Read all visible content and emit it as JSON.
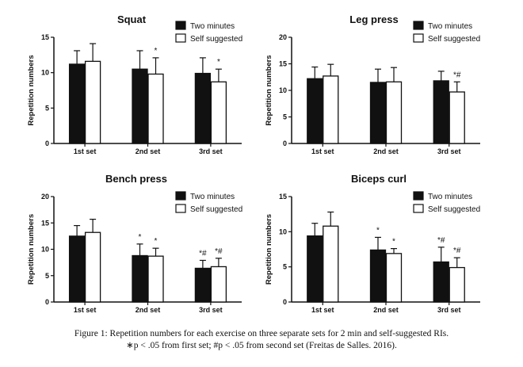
{
  "colors": {
    "two_minutes": "#111111",
    "self_suggested": "#ffffff",
    "outline": "#111111"
  },
  "chart_data": [
    {
      "type": "bar",
      "title": "Squat",
      "ylabel": "Repetition numbers",
      "xlabel": "",
      "categories": [
        "1st set",
        "2nd set",
        "3rd set"
      ],
      "ylim": [
        0,
        15
      ],
      "yticks": [
        0,
        5,
        10,
        15
      ],
      "legend": "top-right",
      "series": [
        {
          "name": "Two minutes",
          "values": [
            11.2,
            10.5,
            9.9
          ],
          "errors": [
            1.9,
            2.6,
            2.2
          ],
          "annotations": [
            "",
            "",
            ""
          ]
        },
        {
          "name": "Self suggested",
          "values": [
            11.6,
            9.8,
            8.7
          ],
          "errors": [
            2.5,
            2.3,
            1.8
          ],
          "annotations": [
            "",
            "*",
            "*"
          ]
        }
      ]
    },
    {
      "type": "bar",
      "title": "Leg press",
      "ylabel": "Repetition numbers",
      "xlabel": "",
      "categories": [
        "1st set",
        "2nd set",
        "3rd set"
      ],
      "ylim": [
        0,
        20
      ],
      "yticks": [
        0,
        5,
        10,
        15,
        20
      ],
      "legend": "top-right",
      "series": [
        {
          "name": "Two minutes",
          "values": [
            12.2,
            11.5,
            11.8
          ],
          "errors": [
            2.2,
            2.5,
            1.8
          ],
          "annotations": [
            "",
            "",
            ""
          ]
        },
        {
          "name": "Self suggested",
          "values": [
            12.7,
            11.6,
            9.7
          ],
          "errors": [
            2.2,
            2.7,
            1.9
          ],
          "annotations": [
            "",
            "",
            "*#"
          ]
        }
      ]
    },
    {
      "type": "bar",
      "title": "Bench press",
      "ylabel": "Repetition numbers",
      "xlabel": "",
      "categories": [
        "1st set",
        "2nd set",
        "3rd set"
      ],
      "ylim": [
        0,
        20
      ],
      "yticks": [
        0,
        5,
        10,
        15,
        20
      ],
      "legend": "top-right",
      "series": [
        {
          "name": "Two minutes",
          "values": [
            12.5,
            8.8,
            6.4
          ],
          "errors": [
            2.0,
            2.2,
            1.5
          ],
          "annotations": [
            "",
            "*",
            "*#"
          ]
        },
        {
          "name": "Self suggested",
          "values": [
            13.2,
            8.7,
            6.7
          ],
          "errors": [
            2.5,
            1.5,
            1.6
          ],
          "annotations": [
            "",
            "*",
            "*#"
          ]
        }
      ]
    },
    {
      "type": "bar",
      "title": "Biceps curl",
      "ylabel": "Repetition numbers",
      "xlabel": "",
      "categories": [
        "1st set",
        "2nd set",
        "3rd set"
      ],
      "ylim": [
        0,
        15
      ],
      "yticks": [
        0,
        5,
        10,
        15
      ],
      "legend": "top-right",
      "series": [
        {
          "name": "Two minutes",
          "values": [
            9.4,
            7.4,
            5.7
          ],
          "errors": [
            1.8,
            1.8,
            2.1
          ],
          "annotations": [
            "",
            "*",
            "*#"
          ]
        },
        {
          "name": "Self suggested",
          "values": [
            10.8,
            6.9,
            4.9
          ],
          "errors": [
            2.0,
            0.7,
            1.4
          ],
          "annotations": [
            "",
            "*",
            "*#"
          ]
        }
      ]
    }
  ],
  "caption": {
    "line1": "Figure 1: Repetition numbers for each exercise on three separate sets for 2 min and self-suggested RIs.",
    "line2": "∗p < .05 from first set; #p < .05 from second set (Freitas de Salles. 2016)."
  }
}
